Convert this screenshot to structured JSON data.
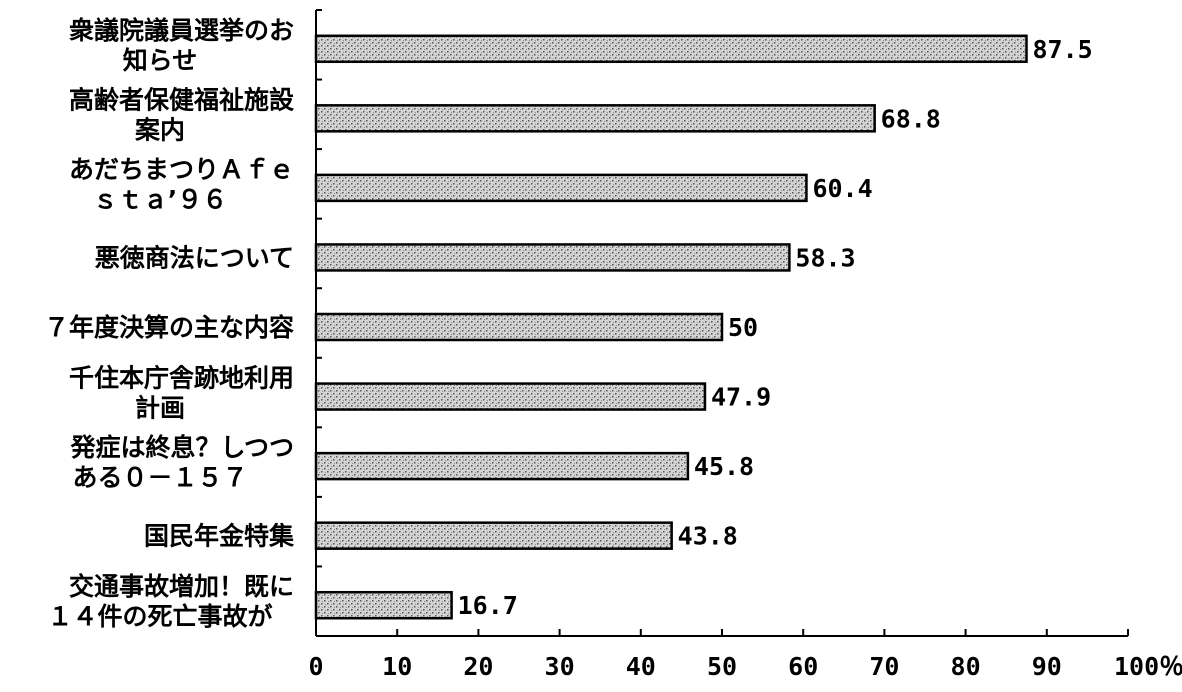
{
  "chart_data": {
    "type": "bar",
    "orientation": "horizontal",
    "categories": [
      [
        "衆議院議員選挙のお",
        "知らせ"
      ],
      [
        "高齢者保健福祉施設",
        "案内"
      ],
      [
        "あだちまつりＡｆｅ",
        "ｓｔａ’９６"
      ],
      [
        "悪徳商法について"
      ],
      [
        "７年度決算の主な内容"
      ],
      [
        "千住本庁舎跡地利用",
        "計画"
      ],
      [
        "発症は終息？しつつ",
        "ある０－１５７"
      ],
      [
        "国民年金特集"
      ],
      [
        "交通事故増加！既に",
        "１４件の死亡事故が"
      ]
    ],
    "values": [
      87.5,
      68.8,
      60.4,
      58.3,
      50,
      47.9,
      45.8,
      43.8,
      16.7
    ],
    "value_labels": [
      "87.5",
      "68.8",
      "60.4",
      "58.3",
      "50",
      "47.9",
      "45.8",
      "43.8",
      "16.7"
    ],
    "xlim": [
      0,
      100
    ],
    "ticks": [
      0,
      10,
      20,
      30,
      40,
      50,
      60,
      70,
      80,
      90,
      100
    ],
    "tick_labels": [
      "0",
      "10",
      "20",
      "30",
      "40",
      "50",
      "60",
      "70",
      "80",
      "90",
      "100％"
    ],
    "bar_color": "#c8c8c8",
    "grid": false,
    "legend": "none"
  }
}
